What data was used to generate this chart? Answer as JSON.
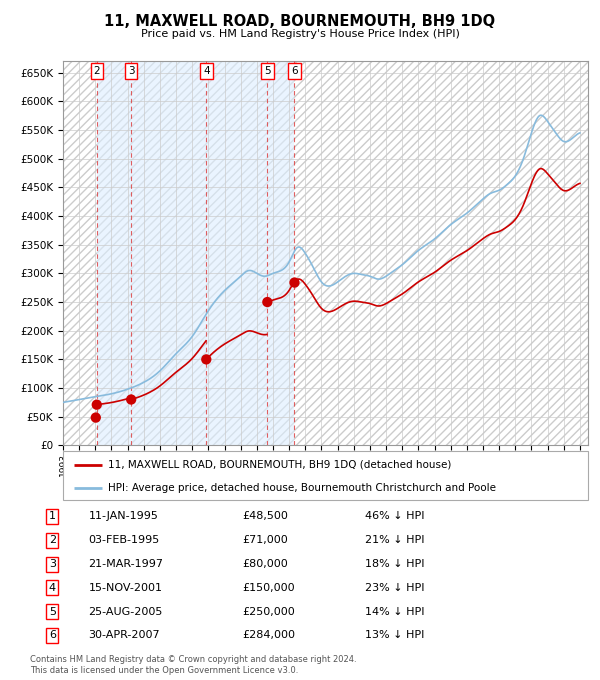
{
  "title": "11, MAXWELL ROAD, BOURNEMOUTH, BH9 1DQ",
  "subtitle": "Price paid vs. HM Land Registry's House Price Index (HPI)",
  "transactions": [
    {
      "num": 1,
      "date": "1995-01-11",
      "price": 48500,
      "pct": "46%",
      "x": 1995.03
    },
    {
      "num": 2,
      "date": "1995-02-03",
      "price": 71000,
      "pct": "21%",
      "x": 1995.09
    },
    {
      "num": 3,
      "date": "1997-03-21",
      "price": 80000,
      "pct": "18%",
      "x": 1997.22
    },
    {
      "num": 4,
      "date": "2001-11-15",
      "price": 150000,
      "pct": "23%",
      "x": 2001.87
    },
    {
      "num": 5,
      "date": "2005-08-25",
      "price": 250000,
      "pct": "14%",
      "x": 2005.65
    },
    {
      "num": 6,
      "date": "2007-04-30",
      "price": 284000,
      "pct": "13%",
      "x": 2007.33
    }
  ],
  "legend_property": "11, MAXWELL ROAD, BOURNEMOUTH, BH9 1DQ (detached house)",
  "legend_hpi": "HPI: Average price, detached house, Bournemouth Christchurch and Poole",
  "footer1": "Contains HM Land Registry data © Crown copyright and database right 2024.",
  "footer2": "This data is licensed under the Open Government Licence v3.0.",
  "xlim": [
    1993,
    2025.5
  ],
  "ylim": [
    0,
    670000
  ],
  "yticks": [
    0,
    50000,
    100000,
    150000,
    200000,
    250000,
    300000,
    350000,
    400000,
    450000,
    500000,
    550000,
    600000,
    650000
  ],
  "transaction_color": "#cc0000",
  "hpi_color": "#88bbdd",
  "shade_color": "#ddeeff",
  "dashed_color": "#dd4444",
  "table_rows": [
    [
      "1",
      "11-JAN-1995",
      "£48,500",
      "46% ↓ HPI"
    ],
    [
      "2",
      "03-FEB-1995",
      "£71,000",
      "21% ↓ HPI"
    ],
    [
      "3",
      "21-MAR-1997",
      "£80,000",
      "18% ↓ HPI"
    ],
    [
      "4",
      "15-NOV-2001",
      "£150,000",
      "23% ↓ HPI"
    ],
    [
      "5",
      "25-AUG-2005",
      "£250,000",
      "14% ↓ HPI"
    ],
    [
      "6",
      "30-APR-2007",
      "£284,000",
      "13% ↓ HPI"
    ]
  ]
}
